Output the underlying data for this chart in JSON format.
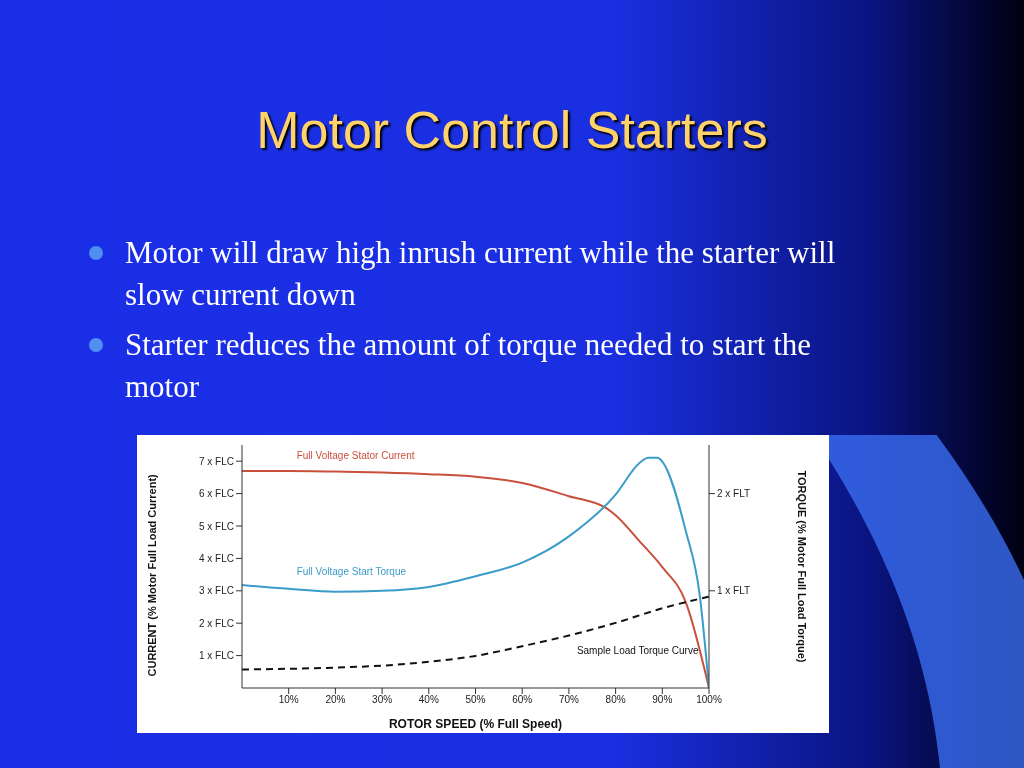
{
  "chart_data": {
    "type": "line",
    "title": "Motor Control Starters",
    "annotations": [
      "Motor will draw high inrush current while the starter will slow current down",
      "Starter reduces the amount of torque needed to start the motor"
    ],
    "xlabel": "ROTOR SPEED (% Full Speed)",
    "ylabel": "CURRENT (% Motor Full Load Current)",
    "y2label": "TORQUE (% Motor Full Load Torque)",
    "xlim": [
      0,
      100
    ],
    "xticks": [
      {
        "value": 10,
        "label": "10%"
      },
      {
        "value": 20,
        "label": "20%"
      },
      {
        "value": 30,
        "label": "30%"
      },
      {
        "value": 40,
        "label": "40%"
      },
      {
        "value": 50,
        "label": "50%"
      },
      {
        "value": 60,
        "label": "60%"
      },
      {
        "value": 70,
        "label": "70%"
      },
      {
        "value": 80,
        "label": "80%"
      },
      {
        "value": 90,
        "label": "90%"
      },
      {
        "value": 100,
        "label": "100%"
      }
    ],
    "ylim": [
      0,
      7.5
    ],
    "yticks": [
      {
        "value": 1,
        "label": "1 x FLC"
      },
      {
        "value": 2,
        "label": "2 x FLC"
      },
      {
        "value": 3,
        "label": "3 x FLC"
      },
      {
        "value": 4,
        "label": "4 x FLC"
      },
      {
        "value": 5,
        "label": "5 x FLC"
      },
      {
        "value": 6,
        "label": "6 x FLC"
      },
      {
        "value": 7,
        "label": "7 x FLC"
      }
    ],
    "y2lim": [
      0,
      2.5
    ],
    "y2ticks": [
      {
        "value": 1,
        "label": "1 x FLT"
      },
      {
        "value": 2,
        "label": "2 x FLT"
      }
    ],
    "grid": false,
    "legend": false,
    "marker": "none",
    "series": [
      {
        "name": "Full Voltage Stator Current",
        "color": "#c8503c",
        "line_style": "solid",
        "x": [
          0,
          10,
          20,
          30,
          40,
          50,
          60,
          70,
          78,
          80,
          85,
          90,
          95,
          100
        ],
        "values": [
          6.7,
          6.7,
          6.68,
          6.65,
          6.6,
          6.52,
          6.33,
          5.92,
          5.55,
          5.33,
          4.55,
          3.73,
          2.66,
          0
        ]
      },
      {
        "name": "Full Voltage Start Torque",
        "color": "#3a9cc8",
        "axis": "y2",
        "line_style": "solid",
        "x": [
          0,
          10,
          20,
          30,
          40,
          50,
          60,
          70,
          80,
          85,
          87,
          89,
          90,
          95,
          98,
          100
        ],
        "values": [
          1.06,
          1.02,
          0.99,
          1.0,
          1.04,
          1.15,
          1.29,
          1.56,
          1.99,
          2.31,
          2.37,
          2.37,
          2.33,
          1.62,
          0.96,
          0
        ]
      },
      {
        "name": "Sample Load Torque Curve",
        "color": "#111111",
        "axis": "y2",
        "line_style": "dashed",
        "x": [
          0,
          20,
          30,
          40,
          50,
          60,
          70,
          80,
          90,
          100
        ],
        "values": [
          0.19,
          0.21,
          0.23,
          0.27,
          0.33,
          0.43,
          0.54,
          0.67,
          0.82,
          0.94
        ]
      }
    ]
  }
}
